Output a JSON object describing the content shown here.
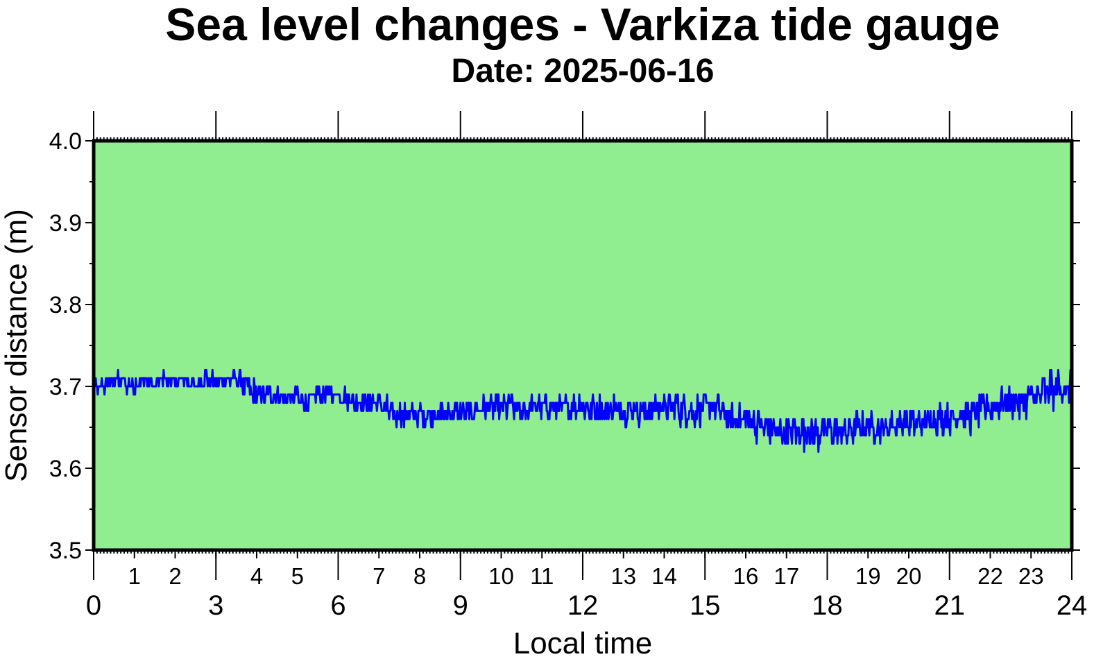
{
  "chart_data": {
    "type": "line",
    "title": "Sea level changes - Varkiza tide gauge",
    "subtitle": "Date: 2025-06-16",
    "xlabel": "Local time",
    "ylabel": "Sensor distance (m)",
    "xlim": [
      0,
      24
    ],
    "ylim": [
      3.5,
      4.0
    ],
    "x_major_ticks": [
      0,
      3,
      6,
      9,
      12,
      15,
      18,
      21,
      24
    ],
    "x_minor_labels": [
      1,
      2,
      4,
      5,
      7,
      8,
      10,
      11,
      13,
      14,
      16,
      17,
      19,
      20,
      22,
      23
    ],
    "y_ticks": [
      "3.5",
      "3.6",
      "3.7",
      "3.8",
      "3.9",
      "4.0"
    ],
    "plot_background": "#90ee90",
    "line_color": "#0000ff",
    "grid": false,
    "series": [
      {
        "x": [
          0.0,
          0.25,
          0.5,
          0.75,
          1.0,
          1.25,
          1.5,
          1.75,
          2.0,
          2.25,
          2.5,
          2.75,
          3.0,
          3.25,
          3.5,
          3.75,
          4.0,
          4.25,
          4.5,
          4.75,
          5.0,
          5.25,
          5.5,
          5.75,
          6.0,
          6.25,
          6.5,
          6.75,
          7.0,
          7.25,
          7.5,
          7.75,
          8.0,
          8.25,
          8.5,
          8.75,
          9.0,
          9.25,
          9.5,
          9.75,
          10.0,
          10.25,
          10.5,
          10.75,
          11.0,
          11.25,
          11.5,
          11.75,
          12.0,
          12.25,
          12.5,
          12.75,
          13.0,
          13.25,
          13.5,
          13.75,
          14.0,
          14.25,
          14.5,
          14.75,
          15.0,
          15.25,
          15.5,
          15.75,
          16.0,
          16.25,
          16.5,
          16.75,
          17.0,
          17.25,
          17.5,
          17.75,
          18.0,
          18.25,
          18.5,
          18.75,
          19.0,
          19.25,
          19.5,
          19.75,
          20.0,
          20.25,
          20.5,
          20.75,
          21.0,
          21.25,
          21.5,
          21.75,
          22.0,
          22.25,
          22.5,
          22.75,
          23.0,
          23.25,
          23.5,
          23.75,
          24.0
        ],
        "y": [
          3.7,
          3.7,
          3.71,
          3.705,
          3.7,
          3.71,
          3.7,
          3.71,
          3.705,
          3.71,
          3.7,
          3.71,
          3.705,
          3.71,
          3.71,
          3.7,
          3.69,
          3.69,
          3.69,
          3.685,
          3.685,
          3.68,
          3.69,
          3.69,
          3.69,
          3.685,
          3.68,
          3.68,
          3.68,
          3.67,
          3.665,
          3.665,
          3.665,
          3.665,
          3.665,
          3.67,
          3.67,
          3.67,
          3.675,
          3.675,
          3.675,
          3.675,
          3.67,
          3.675,
          3.675,
          3.675,
          3.675,
          3.675,
          3.675,
          3.675,
          3.67,
          3.67,
          3.67,
          3.675,
          3.67,
          3.675,
          3.675,
          3.675,
          3.67,
          3.67,
          3.675,
          3.675,
          3.665,
          3.66,
          3.66,
          3.655,
          3.65,
          3.645,
          3.645,
          3.645,
          3.645,
          3.645,
          3.645,
          3.645,
          3.645,
          3.65,
          3.65,
          3.65,
          3.65,
          3.655,
          3.655,
          3.655,
          3.66,
          3.66,
          3.66,
          3.665,
          3.665,
          3.67,
          3.675,
          3.68,
          3.68,
          3.68,
          3.685,
          3.69,
          3.695,
          3.7,
          3.695
        ],
        "amplitude": [
          0.005,
          0.008,
          0.009,
          0.009,
          0.008,
          0.008,
          0.008,
          0.008,
          0.008,
          0.008,
          0.008,
          0.008,
          0.008,
          0.008,
          0.009,
          0.012,
          0.013,
          0.012,
          0.011,
          0.01,
          0.01,
          0.01,
          0.01,
          0.01,
          0.009,
          0.01,
          0.011,
          0.011,
          0.011,
          0.012,
          0.013,
          0.012,
          0.011,
          0.011,
          0.011,
          0.01,
          0.01,
          0.01,
          0.011,
          0.012,
          0.012,
          0.012,
          0.012,
          0.012,
          0.012,
          0.012,
          0.012,
          0.013,
          0.014,
          0.015,
          0.015,
          0.015,
          0.015,
          0.015,
          0.014,
          0.014,
          0.014,
          0.014,
          0.014,
          0.015,
          0.015,
          0.015,
          0.014,
          0.013,
          0.014,
          0.015,
          0.017,
          0.018,
          0.018,
          0.018,
          0.018,
          0.018,
          0.018,
          0.017,
          0.016,
          0.015,
          0.014,
          0.014,
          0.014,
          0.014,
          0.014,
          0.014,
          0.015,
          0.015,
          0.014,
          0.014,
          0.016,
          0.018,
          0.016,
          0.014,
          0.014,
          0.015,
          0.016,
          0.018,
          0.02,
          0.018,
          0.016
        ]
      }
    ]
  }
}
